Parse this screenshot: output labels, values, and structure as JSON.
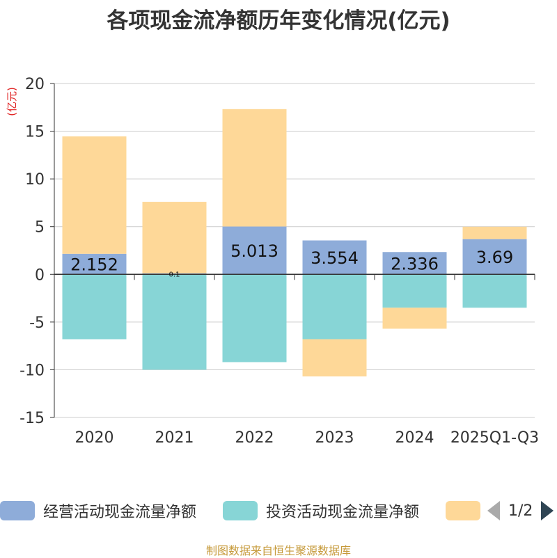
{
  "chart_data": {
    "type": "bar",
    "stacked": true,
    "title": "各项现金流净额历年变化情况(亿元)",
    "ylabel": "(亿元)",
    "xlabel": "",
    "ylim": [
      -15,
      20
    ],
    "yticks": [
      -15,
      -10,
      -5,
      0,
      5,
      10,
      15,
      20
    ],
    "grid": true,
    "categories": [
      "2020",
      "2021",
      "2022",
      "2023",
      "2024",
      "2025Q1-Q3"
    ],
    "series": [
      {
        "name": "经营活动现金流量净额",
        "color": "#8eacd9",
        "values": [
          2.152,
          0.1,
          5.013,
          3.554,
          2.336,
          3.69
        ],
        "labels": [
          "2.152",
          "0.1",
          "5.013",
          "3.554",
          "2.336",
          "3.69"
        ]
      },
      {
        "name": "投资活动现金流量净额",
        "color": "#87d5d6",
        "values": [
          -6.8,
          -10.0,
          -9.2,
          -6.8,
          -3.5,
          -3.5
        ]
      },
      {
        "name": "",
        "color": "#fed898",
        "values": [
          12.3,
          7.5,
          12.3,
          -3.9,
          -2.2,
          1.3
        ]
      }
    ]
  },
  "legend": {
    "items": [
      {
        "label": "经营活动现金流量净额",
        "color": "#8eacd9"
      },
      {
        "label": "投资活动现金流量净额",
        "color": "#87d5d6"
      },
      {
        "label": "",
        "color": "#fed898"
      }
    ],
    "page_text": "1/2"
  },
  "source_text": "制图数据来自恒生聚源数据库"
}
